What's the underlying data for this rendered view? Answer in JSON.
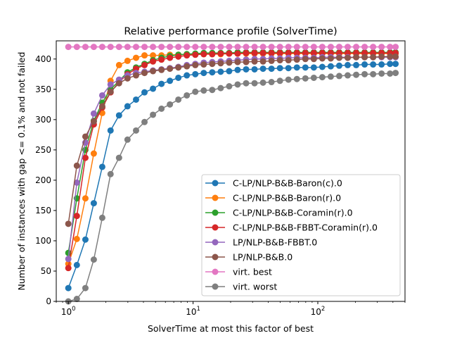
{
  "chart_data": {
    "type": "line",
    "title": "Relative performance profile (SolverTime)",
    "xlabel": "SolverTime at most this factor of best",
    "ylabel": "Number of instances with gap <= 0.1% and not failed",
    "x_scale": "log",
    "xlim": [
      0.8,
      500
    ],
    "ylim": [
      0,
      430
    ],
    "x_ticks": [
      {
        "value": 1,
        "base": "10",
        "exp": "0"
      },
      {
        "value": 10,
        "base": "10",
        "exp": "1"
      },
      {
        "value": 100,
        "base": "10",
        "exp": "2"
      }
    ],
    "y_ticks": [
      0,
      50,
      100,
      150,
      200,
      250,
      300,
      350,
      400
    ],
    "grid": false,
    "legend_position": "lower-right",
    "x": [
      1.0,
      1.17,
      1.37,
      1.6,
      1.87,
      2.18,
      2.55,
      2.98,
      3.49,
      4.08,
      4.77,
      5.58,
      6.52,
      7.62,
      8.91,
      10.42,
      12.18,
      14.24,
      16.65,
      19.47,
      22.76,
      26.61,
      31.11,
      36.38,
      42.53,
      49.73,
      58.14,
      67.98,
      79.48,
      92.92,
      108.6,
      127.0,
      148.5,
      173.6,
      203.0,
      237.3,
      277.5,
      324.4,
      379.3,
      420.0
    ],
    "series": [
      {
        "name": "C-LP/NLP-B&B-Baron(c).0",
        "color": "#1f77b4",
        "values": [
          22,
          60,
          102,
          162,
          222,
          282,
          307,
          322,
          333,
          345,
          351,
          359,
          364,
          369,
          373,
          375,
          377,
          378,
          379,
          380,
          382,
          383,
          383,
          384,
          384,
          385,
          385,
          386,
          386,
          386,
          387,
          388,
          389,
          390,
          390,
          391,
          391,
          391,
          392,
          392
        ]
      },
      {
        "name": "C-LP/NLP-B&B-Baron(r).0",
        "color": "#ff7f0e",
        "values": [
          62,
          103,
          170,
          244,
          311,
          364,
          390,
          397,
          402,
          406,
          406,
          406,
          407,
          407,
          408,
          408,
          408,
          408,
          408,
          409,
          409,
          409,
          409,
          409,
          409,
          409,
          409,
          409,
          409,
          409,
          409,
          409,
          409,
          409,
          409,
          409,
          409,
          409,
          409,
          409
        ]
      },
      {
        "name": "C-LP/NLP-B&B-Coramin(r).0",
        "color": "#2ca02c",
        "values": [
          80,
          170,
          250,
          298,
          328,
          350,
          364,
          378,
          386,
          392,
          398,
          402,
          405,
          407,
          408,
          409,
          410,
          410,
          410,
          410,
          411,
          411,
          411,
          411,
          411,
          411,
          411,
          411,
          411,
          411,
          411,
          411,
          411,
          411,
          411,
          411,
          411,
          411,
          411,
          411
        ]
      },
      {
        "name": "C-LP/NLP-B&B-FBBT-Coramin(r).0",
        "color": "#d62728",
        "values": [
          55,
          141,
          237,
          292,
          320,
          345,
          362,
          375,
          384,
          390,
          396,
          399,
          402,
          404,
          406,
          407,
          408,
          408,
          409,
          409,
          409,
          410,
          410,
          410,
          410,
          410,
          410,
          410,
          410,
          410,
          410,
          410,
          410,
          410,
          410,
          410,
          410,
          410,
          410,
          410
        ]
      },
      {
        "name": "LP/NLP-B&B-FBBT.0",
        "color": "#9467bd",
        "values": [
          70,
          196,
          262,
          310,
          340,
          358,
          366,
          373,
          377,
          379,
          381,
          383,
          385,
          387,
          390,
          392,
          394,
          395,
          396,
          397,
          398,
          399,
          400,
          400,
          401,
          401,
          402,
          402,
          402,
          402,
          403,
          403,
          403,
          403,
          403,
          403,
          403,
          403,
          403,
          403
        ]
      },
      {
        "name": "LP/NLP-B&B.0",
        "color": "#8c564b",
        "values": [
          128,
          224,
          272,
          297,
          322,
          346,
          360,
          368,
          373,
          377,
          380,
          382,
          384,
          386,
          388,
          390,
          391,
          392,
          393,
          394,
          395,
          395,
          396,
          396,
          397,
          398,
          398,
          399,
          400,
          400,
          401,
          401,
          402,
          402,
          403,
          403,
          403,
          404,
          404,
          404
        ]
      },
      {
        "name": "virt. best",
        "color": "#e377c2",
        "values": [
          420,
          420,
          420,
          420,
          420,
          420,
          420,
          420,
          420,
          420,
          420,
          420,
          420,
          420,
          420,
          420,
          420,
          420,
          420,
          420,
          420,
          420,
          420,
          420,
          420,
          420,
          420,
          420,
          420,
          420,
          420,
          420,
          420,
          420,
          420,
          420,
          420,
          420,
          420,
          420
        ]
      },
      {
        "name": "virt. worst",
        "color": "#7f7f7f",
        "values": [
          0,
          4,
          22,
          69,
          138,
          210,
          237,
          267,
          282,
          296,
          308,
          318,
          325,
          333,
          340,
          346,
          348,
          349,
          352,
          355,
          358,
          360,
          360,
          361,
          362,
          364,
          366,
          367,
          368,
          369,
          370,
          371,
          372,
          373,
          374,
          375,
          375,
          376,
          376,
          377
        ]
      }
    ]
  }
}
